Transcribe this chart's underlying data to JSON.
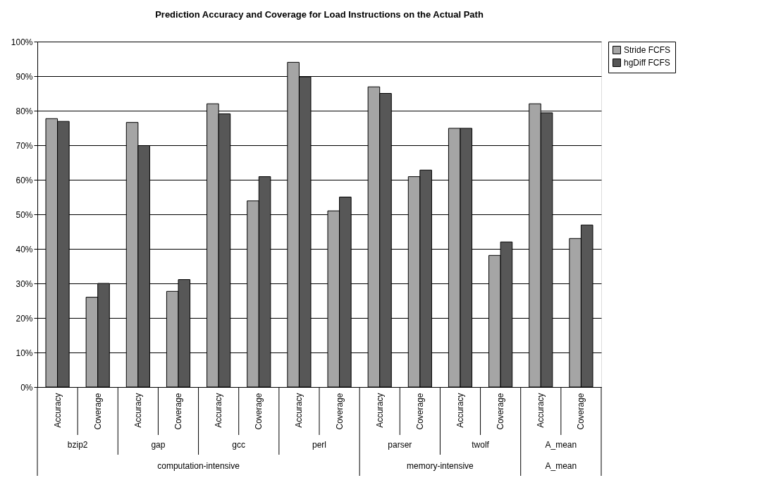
{
  "chart_data": {
    "type": "bar",
    "title": "Prediction Accuracy and Coverage for Load Instructions on the Actual Path",
    "categories": [
      "Accuracy",
      "Coverage",
      "Accuracy",
      "Coverage",
      "Accuracy",
      "Coverage",
      "Accuracy",
      "Coverage",
      "Accuracy",
      "Coverage",
      "Accuracy",
      "Coverage",
      "Accuracy",
      "Coverage"
    ],
    "series": [
      {
        "name": "Stride FCFS",
        "color": "#a5a5a5",
        "values": [
          77.7,
          26.0,
          76.6,
          27.7,
          82.0,
          53.9,
          94.0,
          51.0,
          86.9,
          60.9,
          74.9,
          38.1,
          82.0,
          43.0
        ]
      },
      {
        "name": "hgDiff FCFS",
        "color": "#575757",
        "values": [
          76.9,
          30.0,
          69.9,
          31.1,
          79.1,
          60.9,
          89.8,
          55.0,
          85.0,
          62.8,
          74.9,
          42.0,
          79.4,
          46.9
        ]
      }
    ],
    "annotations": [
      "bzip2",
      "gap",
      "gcc",
      "perl",
      "parser",
      "twolf",
      "A_mean",
      "computation-intensive",
      "memory-intensive",
      "A_mean"
    ],
    "ylim": [
      0,
      100
    ],
    "yticks": [
      {
        "value": 0,
        "label": "0%"
      },
      {
        "value": 10,
        "label": "10%"
      },
      {
        "value": 20,
        "label": "20%"
      },
      {
        "value": 30,
        "label": "30%"
      },
      {
        "value": 40,
        "label": "40%"
      },
      {
        "value": 50,
        "label": "50%"
      },
      {
        "value": 60,
        "label": "60%"
      },
      {
        "value": 70,
        "label": "70%"
      },
      {
        "value": 80,
        "label": "80%"
      },
      {
        "value": 90,
        "label": "90%"
      },
      {
        "value": 100,
        "label": "100%"
      }
    ],
    "grid": "y",
    "legend": "right"
  }
}
